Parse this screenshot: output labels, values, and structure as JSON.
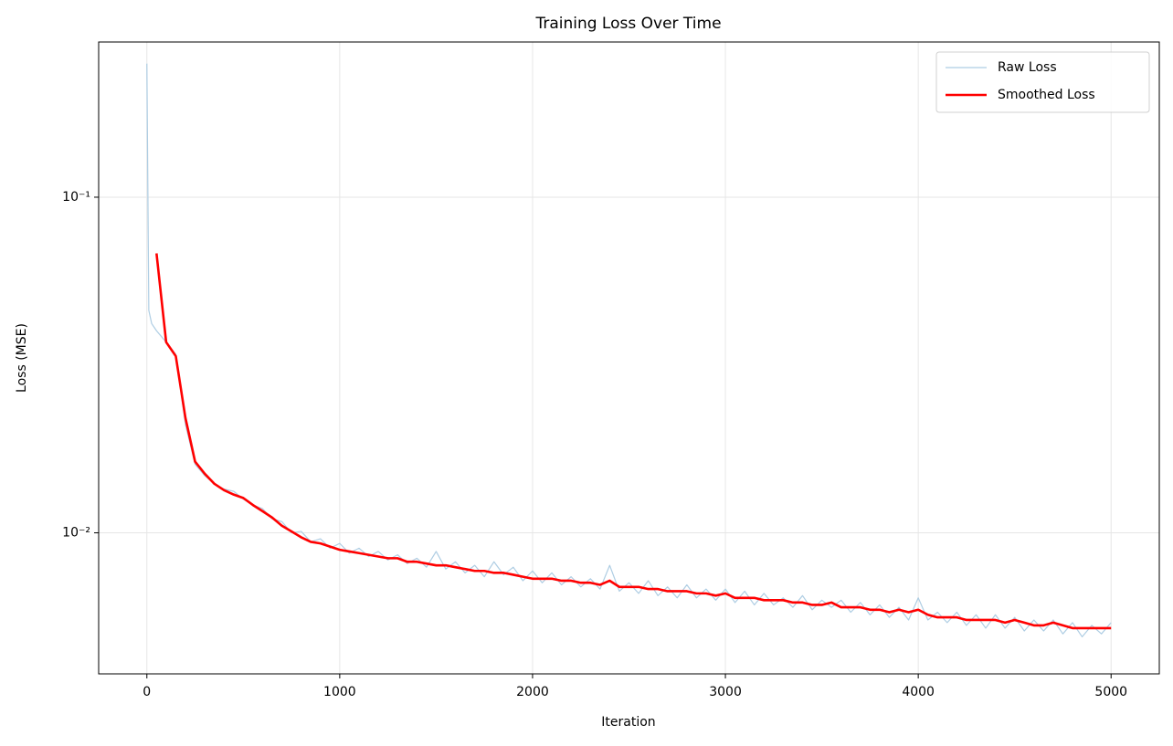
{
  "chart_data": {
    "type": "line",
    "title": "Training Loss Over Time",
    "x_label": "Iteration",
    "y_label": "Loss (MSE)",
    "xlim": [
      -250,
      5250
    ],
    "ylim": [
      0.0038,
      0.29
    ],
    "y_log": true,
    "grid": true,
    "legend": "upper right",
    "xticks": [
      0,
      1000,
      2000,
      3000,
      4000,
      5000
    ],
    "yticks": [
      {
        "value": 0.1,
        "label": "10⁻¹"
      },
      {
        "value": 0.01,
        "label": "10⁻²"
      }
    ],
    "series": [
      {
        "name": "Raw Loss",
        "color": "#aecde3",
        "width": 1.2,
        "x": [
          0,
          10,
          25,
          50,
          100,
          150,
          200,
          250,
          300,
          350,
          400,
          450,
          500,
          550,
          600,
          650,
          700,
          750,
          800,
          850,
          900,
          950,
          1000,
          1050,
          1100,
          1150,
          1200,
          1250,
          1300,
          1350,
          1400,
          1450,
          1500,
          1550,
          1600,
          1650,
          1700,
          1750,
          1800,
          1850,
          1900,
          1950,
          2000,
          2050,
          2100,
          2150,
          2200,
          2250,
          2300,
          2350,
          2400,
          2450,
          2500,
          2550,
          2600,
          2650,
          2700,
          2750,
          2800,
          2850,
          2900,
          2950,
          3000,
          3050,
          3100,
          3150,
          3200,
          3250,
          3300,
          3350,
          3400,
          3450,
          3500,
          3550,
          3600,
          3650,
          3700,
          3750,
          3800,
          3850,
          3900,
          3950,
          4000,
          4050,
          4100,
          4150,
          4200,
          4250,
          4300,
          4350,
          4400,
          4450,
          4500,
          4550,
          4600,
          4650,
          4700,
          4750,
          4800,
          4850,
          4900,
          4950,
          5000
        ],
        "values": [
          0.25,
          0.046,
          0.042,
          0.04,
          0.037,
          0.034,
          0.021,
          0.016,
          0.0148,
          0.014,
          0.0135,
          0.0133,
          0.0126,
          0.0121,
          0.0118,
          0.011,
          0.0108,
          0.01,
          0.0101,
          0.0094,
          0.0096,
          0.009,
          0.0093,
          0.0087,
          0.009,
          0.0085,
          0.0088,
          0.0083,
          0.0086,
          0.0081,
          0.0084,
          0.0079,
          0.0088,
          0.0078,
          0.0082,
          0.0076,
          0.008,
          0.0074,
          0.0082,
          0.0075,
          0.0079,
          0.0072,
          0.0077,
          0.0071,
          0.0076,
          0.007,
          0.0074,
          0.0069,
          0.0073,
          0.0068,
          0.008,
          0.0067,
          0.0071,
          0.0066,
          0.0072,
          0.0065,
          0.0069,
          0.0064,
          0.007,
          0.0064,
          0.0068,
          0.0063,
          0.0068,
          0.0062,
          0.0067,
          0.0061,
          0.0066,
          0.0061,
          0.0064,
          0.006,
          0.0065,
          0.0059,
          0.0063,
          0.006,
          0.0063,
          0.0058,
          0.0062,
          0.0057,
          0.0061,
          0.0056,
          0.006,
          0.0055,
          0.0064,
          0.0055,
          0.0058,
          0.0054,
          0.0058,
          0.0053,
          0.0057,
          0.0052,
          0.0057,
          0.0052,
          0.0056,
          0.0051,
          0.0055,
          0.0051,
          0.0055,
          0.005,
          0.0054,
          0.0049,
          0.0053,
          0.005,
          0.0054
        ]
      },
      {
        "name": "Smoothed Loss",
        "color": "#ff0000",
        "width": 2.6,
        "x": [
          50,
          100,
          150,
          200,
          250,
          300,
          350,
          400,
          450,
          500,
          550,
          600,
          650,
          700,
          750,
          800,
          850,
          900,
          950,
          1000,
          1050,
          1100,
          1150,
          1200,
          1250,
          1300,
          1350,
          1400,
          1450,
          1500,
          1550,
          1600,
          1650,
          1700,
          1750,
          1800,
          1850,
          1900,
          1950,
          2000,
          2050,
          2100,
          2150,
          2200,
          2250,
          2300,
          2350,
          2400,
          2450,
          2500,
          2550,
          2600,
          2650,
          2700,
          2750,
          2800,
          2850,
          2900,
          2950,
          3000,
          3050,
          3100,
          3150,
          3200,
          3250,
          3300,
          3350,
          3400,
          3450,
          3500,
          3550,
          3600,
          3650,
          3700,
          3750,
          3800,
          3850,
          3900,
          3950,
          4000,
          4050,
          4100,
          4150,
          4200,
          4250,
          4300,
          4350,
          4400,
          4450,
          4500,
          4550,
          4600,
          4650,
          4700,
          4750,
          4800,
          4850,
          4900,
          4950,
          5000
        ],
        "values": [
          0.068,
          0.037,
          0.0336,
          0.022,
          0.0163,
          0.015,
          0.014,
          0.0134,
          0.013,
          0.0127,
          0.0121,
          0.0116,
          0.0111,
          0.0105,
          0.0101,
          0.0097,
          0.0094,
          0.0093,
          0.0091,
          0.0089,
          0.0088,
          0.0087,
          0.0086,
          0.0085,
          0.0084,
          0.0084,
          0.0082,
          0.0082,
          0.0081,
          0.008,
          0.008,
          0.0079,
          0.0078,
          0.0077,
          0.0077,
          0.0076,
          0.0076,
          0.0075,
          0.0074,
          0.0073,
          0.0073,
          0.0073,
          0.0072,
          0.0072,
          0.0071,
          0.0071,
          0.007,
          0.0072,
          0.0069,
          0.0069,
          0.0069,
          0.0068,
          0.0068,
          0.0067,
          0.0067,
          0.0067,
          0.0066,
          0.0066,
          0.0065,
          0.0066,
          0.0064,
          0.0064,
          0.0064,
          0.0063,
          0.0063,
          0.0063,
          0.0062,
          0.0062,
          0.0061,
          0.0061,
          0.0062,
          0.006,
          0.006,
          0.006,
          0.0059,
          0.0059,
          0.0058,
          0.0059,
          0.0058,
          0.0059,
          0.0057,
          0.0056,
          0.0056,
          0.0056,
          0.0055,
          0.0055,
          0.0055,
          0.0055,
          0.0054,
          0.0055,
          0.0054,
          0.0053,
          0.0053,
          0.0054,
          0.0053,
          0.0052,
          0.0052,
          0.0052,
          0.0052,
          0.0052
        ]
      }
    ]
  }
}
